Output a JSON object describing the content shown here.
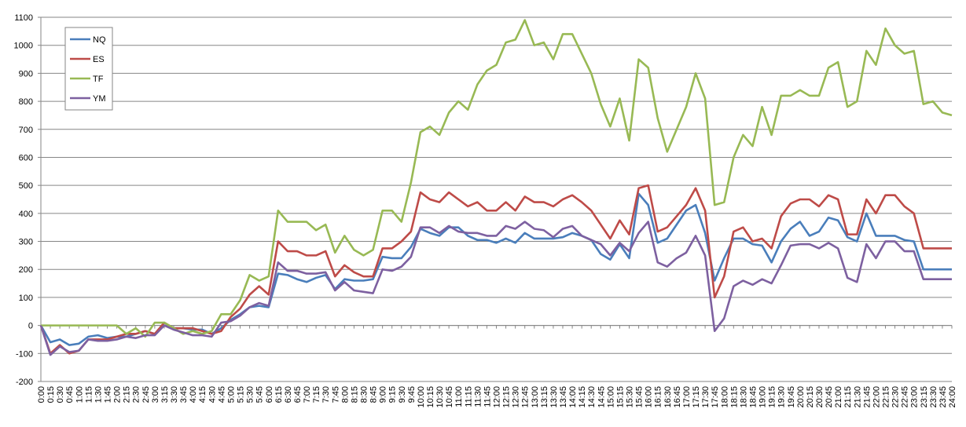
{
  "chart_data": {
    "type": "line",
    "categories": [
      "0:00",
      "0:15",
      "0:30",
      "0:45",
      "1:00",
      "1:15",
      "1:30",
      "1:45",
      "2:00",
      "2:15",
      "2:30",
      "2:45",
      "3:00",
      "3:15",
      "3:30",
      "3:45",
      "4:00",
      "4:15",
      "4:30",
      "4:45",
      "5:00",
      "5:15",
      "5:30",
      "5:45",
      "6:00",
      "6:15",
      "6:30",
      "6:45",
      "7:00",
      "7:15",
      "7:30",
      "7:45",
      "8:00",
      "8:15",
      "8:30",
      "8:45",
      "9:00",
      "9:15",
      "9:30",
      "9:45",
      "10:00",
      "10:15",
      "10:30",
      "10:45",
      "11:00",
      "11:15",
      "11:30",
      "11:45",
      "12:00",
      "12:15",
      "12:30",
      "12:45",
      "13:00",
      "13:15",
      "13:30",
      "13:45",
      "14:00",
      "14:15",
      "14:30",
      "14:45",
      "15:00",
      "15:15",
      "15:30",
      "15:45",
      "16:00",
      "16:15",
      "16:30",
      "16:45",
      "17:00",
      "17:15",
      "17:30",
      "17:45",
      "18:00",
      "18:15",
      "18:30",
      "18:45",
      "19:00",
      "19:15",
      "19:30",
      "19:45",
      "20:00",
      "20:15",
      "20:30",
      "20:45",
      "21:00",
      "21:15",
      "21:30",
      "21:45",
      "22:00",
      "22:15",
      "22:30",
      "22:45",
      "23:00",
      "23:15",
      "23:30",
      "23:45",
      "24:00"
    ],
    "series": [
      {
        "name": "NQ",
        "color": "#4a7ebb",
        "values": [
          0,
          -60,
          -50,
          -70,
          -65,
          -40,
          -35,
          -45,
          -40,
          -40,
          -30,
          -20,
          -30,
          0,
          -10,
          -10,
          -15,
          -15,
          -30,
          -10,
          20,
          40,
          65,
          70,
          65,
          185,
          180,
          165,
          155,
          170,
          180,
          130,
          165,
          160,
          160,
          165,
          245,
          240,
          240,
          280,
          345,
          330,
          320,
          350,
          350,
          320,
          305,
          305,
          295,
          310,
          295,
          330,
          310,
          310,
          310,
          315,
          330,
          320,
          305,
          255,
          235,
          290,
          240,
          470,
          430,
          295,
          310,
          360,
          410,
          430,
          330,
          160,
          240,
          310,
          310,
          290,
          285,
          225,
          300,
          345,
          370,
          320,
          335,
          385,
          375,
          315,
          300,
          400,
          320,
          320,
          320,
          305,
          300,
          200,
          200,
          200,
          200
        ]
      },
      {
        "name": "ES",
        "color": "#be4b48",
        "values": [
          0,
          -100,
          -70,
          -100,
          -90,
          -50,
          -50,
          -50,
          -40,
          -30,
          -30,
          -20,
          -30,
          10,
          -10,
          -10,
          -10,
          -20,
          -30,
          -20,
          30,
          60,
          110,
          140,
          110,
          300,
          265,
          265,
          250,
          250,
          265,
          175,
          215,
          190,
          175,
          175,
          275,
          275,
          300,
          335,
          475,
          450,
          440,
          475,
          450,
          425,
          440,
          410,
          410,
          440,
          410,
          460,
          440,
          440,
          425,
          450,
          465,
          440,
          410,
          360,
          310,
          375,
          325,
          490,
          500,
          335,
          350,
          390,
          430,
          490,
          410,
          100,
          175,
          335,
          350,
          300,
          310,
          275,
          390,
          435,
          450,
          450,
          425,
          465,
          450,
          325,
          325,
          450,
          400,
          465,
          465,
          425,
          400,
          275,
          275,
          275,
          275
        ]
      },
      {
        "name": "TF",
        "color": "#98b954",
        "values": [
          0,
          0,
          0,
          0,
          0,
          0,
          0,
          0,
          0,
          -30,
          -10,
          -40,
          10,
          10,
          -10,
          -30,
          -20,
          -30,
          -20,
          40,
          40,
          90,
          180,
          160,
          175,
          410,
          370,
          370,
          370,
          340,
          360,
          260,
          320,
          270,
          250,
          270,
          410,
          410,
          370,
          510,
          690,
          710,
          680,
          760,
          800,
          770,
          860,
          910,
          930,
          1010,
          1020,
          1090,
          1000,
          1010,
          950,
          1040,
          1040,
          970,
          900,
          790,
          710,
          810,
          660,
          950,
          920,
          740,
          620,
          700,
          780,
          900,
          810,
          430,
          440,
          600,
          680,
          640,
          780,
          680,
          820,
          820,
          840,
          820,
          820,
          920,
          940,
          780,
          800,
          980,
          930,
          1060,
          1000,
          970,
          980,
          790,
          800,
          760,
          750
        ]
      },
      {
        "name": "YM",
        "color": "#7d60a0",
        "values": [
          0,
          -105,
          -75,
          -95,
          -90,
          -50,
          -55,
          -55,
          -50,
          -40,
          -45,
          -35,
          -35,
          0,
          -15,
          -25,
          -35,
          -35,
          -40,
          10,
          15,
          35,
          65,
          80,
          70,
          225,
          195,
          195,
          185,
          185,
          190,
          125,
          155,
          125,
          120,
          115,
          200,
          195,
          210,
          245,
          350,
          350,
          330,
          355,
          335,
          330,
          330,
          320,
          320,
          355,
          345,
          370,
          345,
          340,
          315,
          345,
          355,
          320,
          305,
          290,
          250,
          295,
          265,
          330,
          370,
          225,
          210,
          240,
          260,
          320,
          250,
          -20,
          25,
          140,
          160,
          145,
          165,
          150,
          215,
          285,
          290,
          290,
          275,
          295,
          275,
          170,
          155,
          290,
          240,
          300,
          300,
          265,
          265,
          165,
          165,
          165,
          165
        ]
      }
    ],
    "ylim": [
      -200,
      1100
    ],
    "yticks": [
      -200,
      -100,
      0,
      100,
      200,
      300,
      400,
      500,
      600,
      700,
      800,
      900,
      1000,
      1100
    ],
    "grid": true,
    "legend": "top-left"
  }
}
